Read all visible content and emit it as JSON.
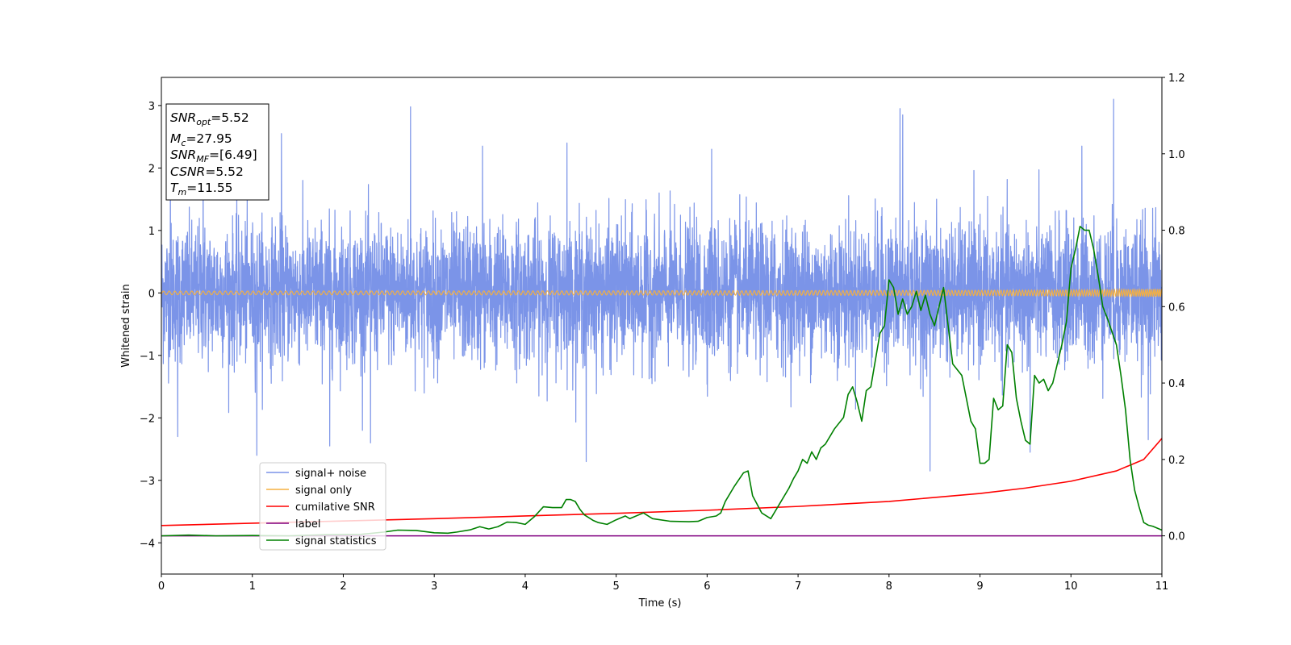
{
  "chart_data": {
    "type": "line",
    "xlabel": "Time (s)",
    "ylabel": "Whitened strain",
    "xlim": [
      0,
      11
    ],
    "ylim": [
      -4.5,
      3.45
    ],
    "y2lim": [
      -0.1,
      1.2
    ],
    "x_ticks": [
      "0",
      "1",
      "2",
      "3",
      "4",
      "5",
      "6",
      "7",
      "8",
      "9",
      "10",
      "11"
    ],
    "y_ticks": [
      "3",
      "2",
      "1",
      "0",
      "−1",
      "−2",
      "−3",
      "−4"
    ],
    "y2_ticks": [
      "1.2",
      "1.0",
      "0.8",
      "0.6",
      "0.4",
      "0.2",
      "0.0"
    ],
    "grid": false,
    "legend_placement": "lower-left",
    "info_box": {
      "snr_opt": {
        "base": "SNR",
        "sub": "opt",
        "value": "=5.52"
      },
      "mc": {
        "base": "M",
        "sub": "c",
        "value": "=27.95"
      },
      "snr_mf": {
        "base": "SNR",
        "sub": "MF",
        "value": "=[6.49]"
      },
      "csnr": {
        "base": "CSNR",
        "sub": "",
        "value": "=5.52"
      },
      "tm": {
        "base": "T",
        "sub": "m",
        "value": "=11.55"
      }
    },
    "series": [
      {
        "name": "signal+ noise",
        "axis": "left",
        "color": "#7b94e8",
        "kind": "noise",
        "amplitude_sigma": 0.55,
        "peak_values": [
          {
            "x": 0.1,
            "y": 2.6
          },
          {
            "x": 0.46,
            "y": 2.3
          },
          {
            "x": 1.32,
            "y": 2.55
          },
          {
            "x": 2.74,
            "y": 2.98
          },
          {
            "x": 3.53,
            "y": 2.35
          },
          {
            "x": 4.46,
            "y": 2.4
          },
          {
            "x": 6.05,
            "y": 2.3
          },
          {
            "x": 8.12,
            "y": 2.95
          },
          {
            "x": 8.15,
            "y": 2.85
          },
          {
            "x": 10.47,
            "y": 3.1
          },
          {
            "x": 10.12,
            "y": 2.35
          },
          {
            "x": 1.05,
            "y": -2.6
          },
          {
            "x": 1.85,
            "y": -2.45
          },
          {
            "x": 2.3,
            "y": -2.4
          },
          {
            "x": 4.67,
            "y": -2.7
          },
          {
            "x": 8.45,
            "y": -2.85
          },
          {
            "x": 0.18,
            "y": -2.3
          },
          {
            "x": 9.55,
            "y": -2.55
          },
          {
            "x": 10.85,
            "y": -2.35
          }
        ]
      },
      {
        "name": "signal only",
        "axis": "left",
        "color": "#f5b041",
        "kind": "chirp",
        "amplitude_end": 0.07
      },
      {
        "name": "cumilative SNR",
        "axis": "right",
        "color": "#ff0000",
        "x": [
          0,
          1,
          2,
          3,
          4,
          5,
          6,
          7,
          8,
          9,
          9.5,
          10,
          10.5,
          10.8,
          11
        ],
        "y": [
          0.027,
          0.033,
          0.039,
          0.045,
          0.052,
          0.059,
          0.067,
          0.077,
          0.09,
          0.111,
          0.125,
          0.143,
          0.17,
          0.2,
          0.255
        ]
      },
      {
        "name": "label",
        "axis": "right",
        "color": "#800080",
        "x": [
          0,
          11
        ],
        "y": [
          0.0,
          0.0
        ]
      },
      {
        "name": "signal statistics",
        "axis": "right",
        "color": "#008000",
        "x": [
          0,
          0.3,
          0.6,
          1.0,
          1.4,
          1.8,
          2.2,
          2.45,
          2.6,
          2.8,
          3.0,
          3.15,
          3.25,
          3.4,
          3.5,
          3.6,
          3.7,
          3.8,
          3.9,
          4.0,
          4.1,
          4.2,
          4.3,
          4.4,
          4.45,
          4.5,
          4.55,
          4.6,
          4.65,
          4.75,
          4.8,
          4.9,
          5.0,
          5.1,
          5.15,
          5.2,
          5.3,
          5.4,
          5.6,
          5.8,
          5.9,
          6.0,
          6.1,
          6.15,
          6.2,
          6.3,
          6.4,
          6.45,
          6.5,
          6.6,
          6.7,
          6.8,
          6.9,
          6.95,
          7.0,
          7.05,
          7.1,
          7.15,
          7.2,
          7.25,
          7.3,
          7.4,
          7.5,
          7.55,
          7.6,
          7.65,
          7.7,
          7.75,
          7.8,
          7.9,
          7.95,
          8.0,
          8.05,
          8.1,
          8.15,
          8.2,
          8.25,
          8.3,
          8.35,
          8.4,
          8.45,
          8.5,
          8.55,
          8.6,
          8.7,
          8.8,
          8.85,
          8.9,
          8.95,
          9.0,
          9.05,
          9.1,
          9.15,
          9.2,
          9.25,
          9.3,
          9.35,
          9.4,
          9.45,
          9.5,
          9.55,
          9.6,
          9.65,
          9.7,
          9.75,
          9.8,
          9.85,
          9.9,
          9.95,
          10.0,
          10.05,
          10.1,
          10.15,
          10.2,
          10.25,
          10.3,
          10.35,
          10.4,
          10.5,
          10.55,
          10.6,
          10.65,
          10.7,
          10.75,
          10.8,
          10.85,
          10.9,
          11.0
        ],
        "y": [
          0.0,
          0.002,
          0.0,
          0.001,
          0.0,
          0.003,
          0.004,
          0.01,
          0.015,
          0.014,
          0.008,
          0.007,
          0.01,
          0.016,
          0.024,
          0.018,
          0.024,
          0.036,
          0.035,
          0.03,
          0.05,
          0.076,
          0.074,
          0.074,
          0.095,
          0.095,
          0.09,
          0.07,
          0.055,
          0.04,
          0.035,
          0.03,
          0.042,
          0.052,
          0.045,
          0.05,
          0.06,
          0.045,
          0.038,
          0.037,
          0.038,
          0.048,
          0.052,
          0.06,
          0.09,
          0.13,
          0.165,
          0.17,
          0.105,
          0.06,
          0.045,
          0.085,
          0.125,
          0.15,
          0.17,
          0.2,
          0.19,
          0.22,
          0.2,
          0.23,
          0.24,
          0.28,
          0.31,
          0.37,
          0.39,
          0.35,
          0.3,
          0.38,
          0.39,
          0.53,
          0.55,
          0.67,
          0.65,
          0.58,
          0.62,
          0.58,
          0.6,
          0.64,
          0.59,
          0.63,
          0.58,
          0.55,
          0.6,
          0.65,
          0.45,
          0.42,
          0.36,
          0.3,
          0.28,
          0.19,
          0.19,
          0.2,
          0.36,
          0.33,
          0.34,
          0.5,
          0.48,
          0.36,
          0.3,
          0.25,
          0.24,
          0.42,
          0.4,
          0.41,
          0.38,
          0.4,
          0.45,
          0.5,
          0.56,
          0.7,
          0.75,
          0.81,
          0.8,
          0.8,
          0.75,
          0.68,
          0.6,
          0.57,
          0.5,
          0.42,
          0.33,
          0.2,
          0.12,
          0.075,
          0.035,
          0.028,
          0.025,
          0.015
        ]
      }
    ]
  }
}
